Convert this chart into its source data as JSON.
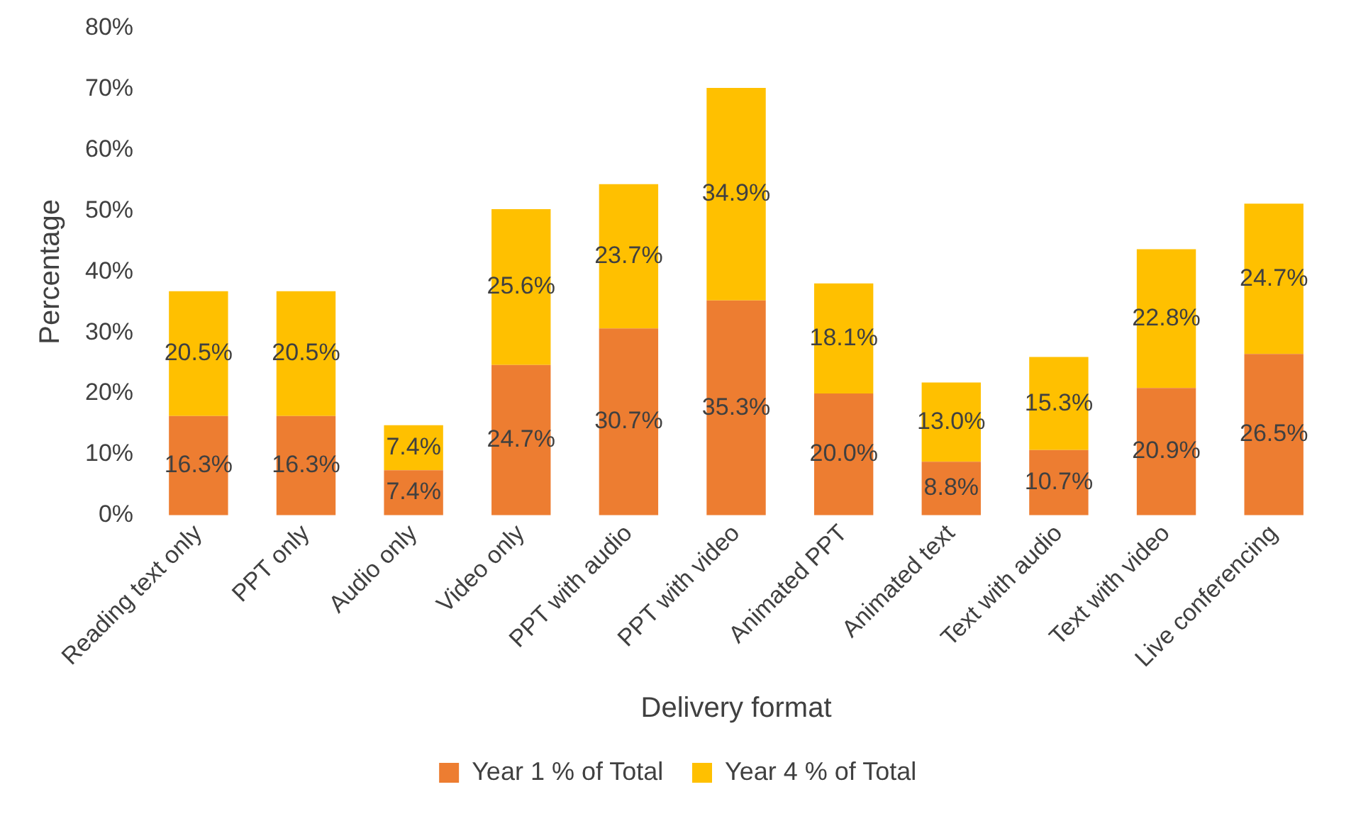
{
  "chart_data": {
    "type": "bar",
    "stacked": true,
    "xlabel": "Delivery format",
    "ylabel": "Percentage",
    "categories": [
      "Reading text only",
      "PPT only",
      "Audio only",
      "Video only",
      "PPT with audio",
      "PPT with video",
      "Animated PPT",
      "Animated text",
      "Text with audio",
      "Text with video",
      "Live conferencing"
    ],
    "series": [
      {
        "name": "Year 1 % of Total",
        "color": "#ed7d31",
        "values": [
          16.3,
          16.3,
          7.4,
          24.7,
          30.7,
          35.3,
          20.0,
          8.8,
          10.7,
          20.9,
          26.5
        ],
        "value_labels": [
          "16.3%",
          "16.3%",
          "7.4%",
          "24.7%",
          "30.7%",
          "35.3%",
          "20.0%",
          "8.8%",
          "10.7%",
          "20.9%",
          "26.5%"
        ]
      },
      {
        "name": "Year 4 % of Total",
        "color": "#ffc000",
        "values": [
          20.5,
          20.5,
          7.4,
          25.6,
          23.7,
          34.9,
          18.1,
          13.0,
          15.3,
          22.8,
          24.7
        ],
        "value_labels": [
          "20.5%",
          "20.5%",
          "7.4%",
          "25.6%",
          "23.7%",
          "34.9%",
          "18.1%",
          "13.0%",
          "15.3%",
          "22.8%",
          "24.7%"
        ]
      }
    ],
    "ylim": [
      0,
      80
    ],
    "yticks": [
      {
        "value": 0,
        "label": "0%"
      },
      {
        "value": 10,
        "label": "10%"
      },
      {
        "value": 20,
        "label": "20%"
      },
      {
        "value": 30,
        "label": "30%"
      },
      {
        "value": 40,
        "label": "40%"
      },
      {
        "value": 50,
        "label": "50%"
      },
      {
        "value": 60,
        "label": "60%"
      },
      {
        "value": 70,
        "label": "70%"
      },
      {
        "value": 80,
        "label": "80%"
      }
    ],
    "grid": false,
    "legend": "bottom"
  }
}
